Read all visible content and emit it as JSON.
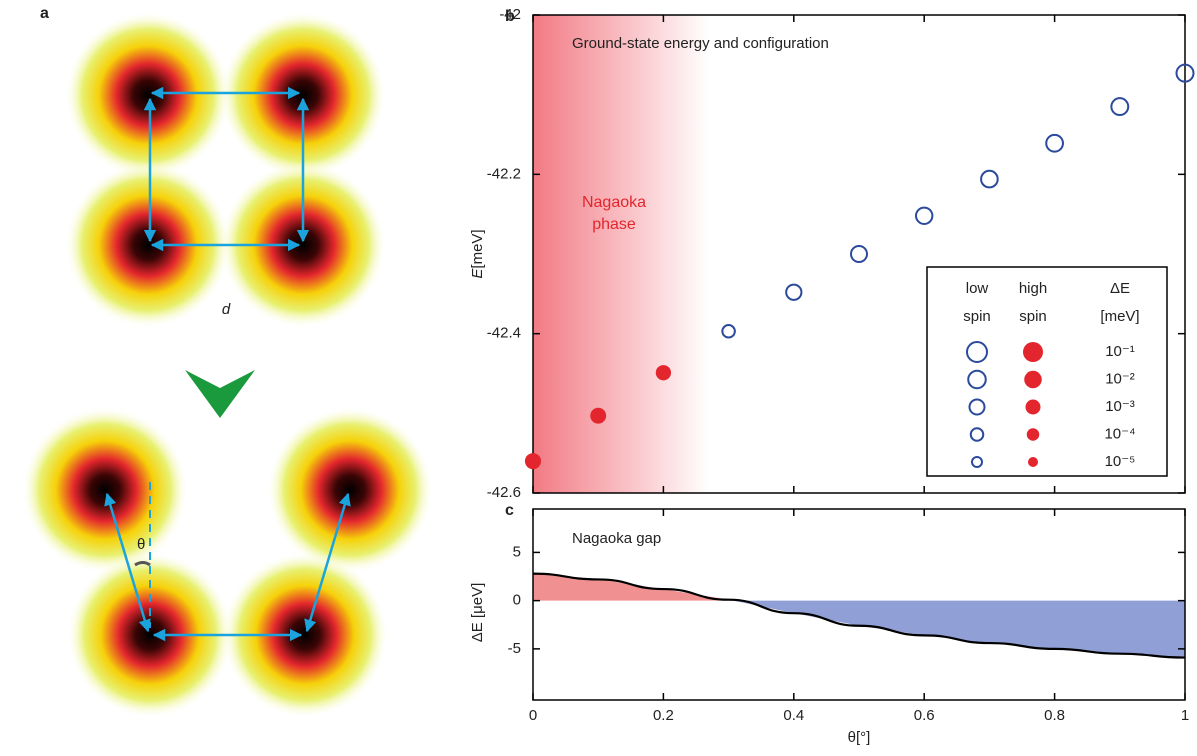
{
  "panel_a": {
    "label": "a",
    "distance_label": "d",
    "angle_label": "θ"
  },
  "chart_data": [
    {
      "type": "scatter",
      "panel_label": "b",
      "title": "Ground-state energy and configuration",
      "ylabel_symbol": "E",
      "ylabel_unit": "[meV]",
      "annotation": [
        "Nagaoka",
        "phase"
      ],
      "nagaoka_region": [
        0,
        0.27
      ],
      "xlim": [
        0,
        1
      ],
      "xticks": [
        0,
        0.2,
        0.4,
        0.6,
        0.8,
        1
      ],
      "ylim": [
        -42.6,
        -42
      ],
      "yticks": [
        -42,
        -42.2,
        -42.4,
        -42.6
      ],
      "series": [
        {
          "name": "high spin",
          "color": "#e3262d",
          "filled": true,
          "x": [
            0,
            0.1,
            0.2
          ],
          "values": [
            -42.56,
            -42.503,
            -42.449
          ],
          "sizes": [
            -2.55,
            -2.65,
            -2.9
          ]
        },
        {
          "name": "low spin",
          "color": "#2b4a9b",
          "filled": false,
          "x": [
            0.3,
            0.4,
            0.5,
            0.6,
            0.7,
            0.8,
            0.9,
            1.0
          ],
          "values": [
            -42.397,
            -42.348,
            -42.3,
            -42.252,
            -42.206,
            -42.161,
            -42.115,
            -42.073
          ],
          "sizes": [
            -4,
            -2.9,
            -2.6,
            -2.45,
            -2.35,
            -2.3,
            -2.25,
            -2.2
          ]
        }
      ],
      "legend": {
        "headers": [
          [
            "low",
            "spin"
          ],
          [
            "high",
            "spin"
          ],
          [
            "ΔE",
            "[meV]"
          ]
        ],
        "rows": [
          {
            "label": "10⁻¹",
            "size": -1
          },
          {
            "label": "10⁻²",
            "size": -2
          },
          {
            "label": "10⁻³",
            "size": -3
          },
          {
            "label": "10⁻⁴",
            "size": -4
          },
          {
            "label": "10⁻⁵",
            "size": -5
          }
        ]
      }
    },
    {
      "type": "area",
      "panel_label": "c",
      "title": "Nagaoka gap",
      "xlabel": "θ[°]",
      "ylabel": "ΔE [μeV]",
      "xlim": [
        0,
        1
      ],
      "xticks": [
        0,
        0.2,
        0.4,
        0.6,
        0.8,
        1
      ],
      "ylim": [
        -10.3,
        9.5
      ],
      "yticks": [
        5,
        0,
        -5
      ],
      "x": [
        0,
        0.1,
        0.2,
        0.3,
        0.4,
        0.5,
        0.6,
        0.7,
        0.8,
        0.9,
        1.0
      ],
      "values": [
        2.8,
        2.2,
        1.2,
        0.1,
        -1.3,
        -2.6,
        -3.6,
        -4.4,
        -5.0,
        -5.5,
        -5.9
      ],
      "positive_color": "#f09090",
      "negative_color": "#909fd6",
      "line_color": "#000000"
    }
  ]
}
